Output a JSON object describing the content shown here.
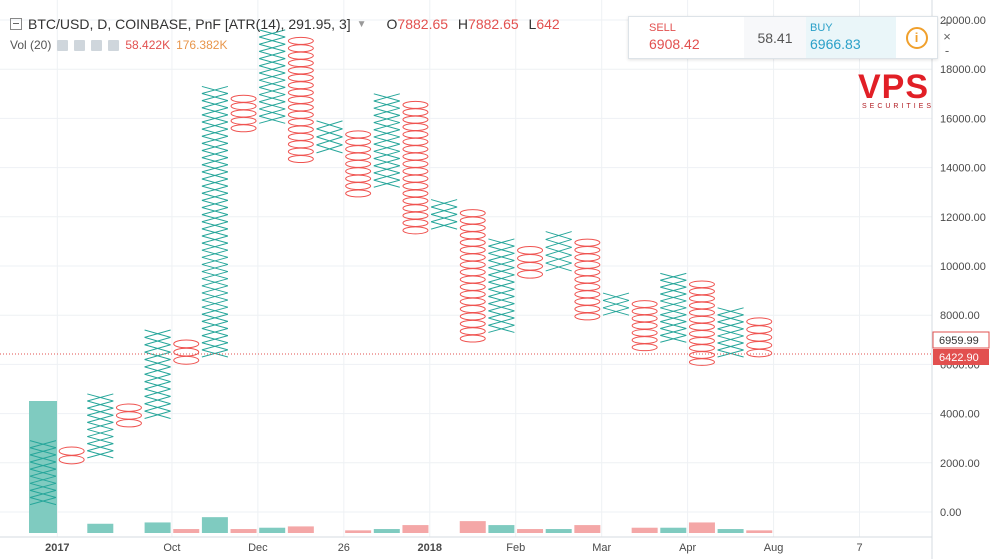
{
  "header": {
    "symbol": "BTC/USD, D, COINBASE, PnF [ATR(14), 291.95, 3]",
    "open_label": "O",
    "open_value": "7882.65",
    "high_label": "H",
    "high_value": "7882.65",
    "low_label": "L",
    "low_value": "642"
  },
  "volume_legend": {
    "label": "Vol (20)",
    "value1": "58.422K",
    "value2": "176.382K"
  },
  "trade_panel": {
    "sell_label": "SELL",
    "sell_price": "6908.42",
    "spread": "58.41",
    "buy_label": "BUY",
    "buy_price": "6966.83",
    "info_glyph": "i"
  },
  "logo": {
    "text": "VPS",
    "subtext": "SECURITIES"
  },
  "side_tools": [
    "+",
    "×",
    "-"
  ],
  "colors": {
    "x_column": "#26a69a",
    "o_column": "#ef5350",
    "volume_up": "#7fcbc0",
    "volume_down": "#f4a7a7",
    "last_price_badge": "#e2504f",
    "prev_price_badge": "#ffffff",
    "grid": "#eef1f4",
    "axis_text": "#4a4a4a"
  },
  "chart_data": {
    "type": "point-and-figure",
    "title": "BTC/USD, D, COINBASE, PnF [ATR(14), 291.95, 3]",
    "ylim": [
      -500,
      19800
    ],
    "y_ticks": [
      "0.00",
      "2000.00",
      "4000.00",
      "6000.00",
      "8000.00",
      "10000.00",
      "12000.00",
      "14000.00",
      "16000.00",
      "18000.00",
      "20000.00"
    ],
    "y_tick_values": [
      0,
      2000,
      4000,
      6000,
      8000,
      10000,
      12000,
      14000,
      16000,
      18000,
      20000
    ],
    "x_ticks": [
      "2017",
      "Oct",
      "Dec",
      "26",
      "2018",
      "Feb",
      "Mar",
      "Apr",
      "Aug",
      "7"
    ],
    "x_tick_columns": [
      0.5,
      4.5,
      7.5,
      10.5,
      13.5,
      16.5,
      19.5,
      22.5,
      25.5,
      28.5
    ],
    "price_labels": {
      "prev_close": "6959.99",
      "last": "6422.90",
      "last_value": 6422.9
    },
    "columns": [
      {
        "type": "X",
        "low": 300,
        "high": 2900
      },
      {
        "type": "O",
        "low": 1950,
        "high": 2650
      },
      {
        "type": "X",
        "low": 2200,
        "high": 4800
      },
      {
        "type": "O",
        "low": 3450,
        "high": 4400
      },
      {
        "type": "X",
        "low": 3800,
        "high": 7400
      },
      {
        "type": "O",
        "low": 6000,
        "high": 7000
      },
      {
        "type": "X",
        "low": 6300,
        "high": 17300
      },
      {
        "type": "O",
        "low": 15450,
        "high": 16950
      },
      {
        "type": "X",
        "low": 15800,
        "high": 19600
      },
      {
        "type": "O",
        "low": 14200,
        "high": 19300
      },
      {
        "type": "X",
        "low": 14600,
        "high": 15900
      },
      {
        "type": "O",
        "low": 12800,
        "high": 15500
      },
      {
        "type": "X",
        "low": 13200,
        "high": 17000
      },
      {
        "type": "O",
        "low": 11300,
        "high": 16700
      },
      {
        "type": "X",
        "low": 11500,
        "high": 12700
      },
      {
        "type": "O",
        "low": 6900,
        "high": 12300
      },
      {
        "type": "X",
        "low": 7300,
        "high": 11100
      },
      {
        "type": "O",
        "low": 9500,
        "high": 10800
      },
      {
        "type": "X",
        "low": 9800,
        "high": 11400
      },
      {
        "type": "O",
        "low": 7800,
        "high": 11100
      },
      {
        "type": "X",
        "low": 8000,
        "high": 8900
      },
      {
        "type": "O",
        "low": 6550,
        "high": 8600
      },
      {
        "type": "X",
        "low": 6900,
        "high": 9700
      },
      {
        "type": "O",
        "low": 5950,
        "high": 9400
      },
      {
        "type": "X",
        "low": 6300,
        "high": 8300
      },
      {
        "type": "O",
        "low": 6300,
        "high": 7900
      }
    ],
    "volume": [
      {
        "col": 0,
        "value": 100,
        "dir": "up"
      },
      {
        "col": 2,
        "value": 7,
        "dir": "up"
      },
      {
        "col": 4,
        "value": 8,
        "dir": "up"
      },
      {
        "col": 5,
        "value": 3,
        "dir": "down"
      },
      {
        "col": 6,
        "value": 12,
        "dir": "up"
      },
      {
        "col": 7,
        "value": 3,
        "dir": "down"
      },
      {
        "col": 8,
        "value": 4,
        "dir": "up"
      },
      {
        "col": 9,
        "value": 5,
        "dir": "down"
      },
      {
        "col": 11,
        "value": 2,
        "dir": "down"
      },
      {
        "col": 12,
        "value": 3,
        "dir": "up"
      },
      {
        "col": 13,
        "value": 6,
        "dir": "down"
      },
      {
        "col": 15,
        "value": 9,
        "dir": "down"
      },
      {
        "col": 16,
        "value": 6,
        "dir": "up"
      },
      {
        "col": 17,
        "value": 3,
        "dir": "down"
      },
      {
        "col": 18,
        "value": 3,
        "dir": "up"
      },
      {
        "col": 19,
        "value": 6,
        "dir": "down"
      },
      {
        "col": 21,
        "value": 4,
        "dir": "down"
      },
      {
        "col": 22,
        "value": 4,
        "dir": "up"
      },
      {
        "col": 23,
        "value": 8,
        "dir": "down"
      },
      {
        "col": 24,
        "value": 3,
        "dir": "up"
      },
      {
        "col": 25,
        "value": 2,
        "dir": "down"
      }
    ]
  }
}
